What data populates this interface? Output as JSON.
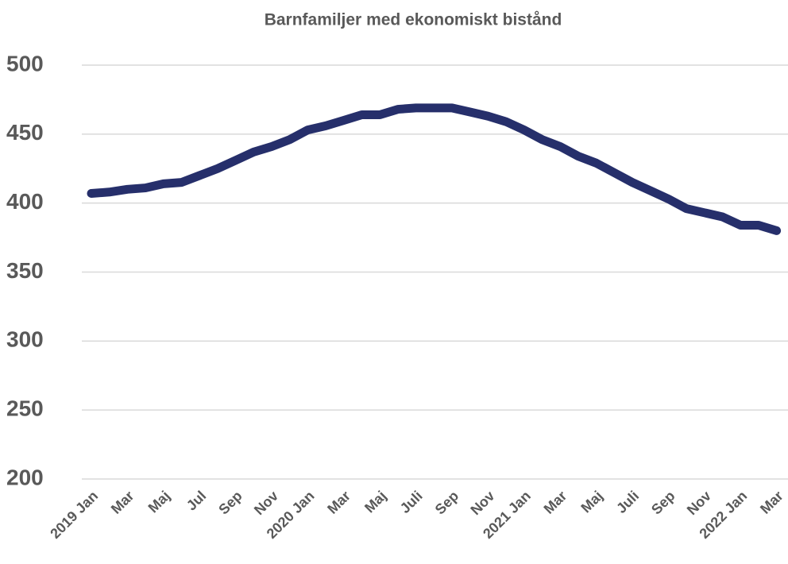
{
  "chart_data": {
    "type": "line",
    "title": "Barnfamiljer med ekonomiskt bistånd",
    "categories": [
      "2019 Jan",
      null,
      "Mar",
      null,
      "Maj",
      null,
      "Jul",
      null,
      "Sep",
      null,
      "Nov",
      null,
      "2020 Jan",
      null,
      "Mar",
      null,
      "Maj",
      null,
      "Juli",
      null,
      "Sep",
      null,
      "Nov",
      null,
      "2021 Jan",
      null,
      "Mar",
      null,
      "Maj",
      null,
      "Juli",
      null,
      "Sep",
      null,
      "Nov",
      null,
      "2022 Jan",
      null,
      "Mar"
    ],
    "series": [
      {
        "name": "Barnfamiljer",
        "color": "#262f6b",
        "values": [
          407,
          408,
          410,
          411,
          414,
          415,
          420,
          425,
          431,
          437,
          441,
          446,
          453,
          456,
          460,
          464,
          464,
          468,
          469,
          469,
          469,
          466,
          463,
          459,
          453,
          446,
          441,
          434,
          429,
          422,
          415,
          409,
          403,
          396,
          393,
          390,
          384,
          384,
          380
        ]
      }
    ],
    "ylim": [
      200,
      500
    ],
    "yticks": [
      200,
      250,
      300,
      350,
      400,
      450,
      500
    ],
    "grid": true
  }
}
